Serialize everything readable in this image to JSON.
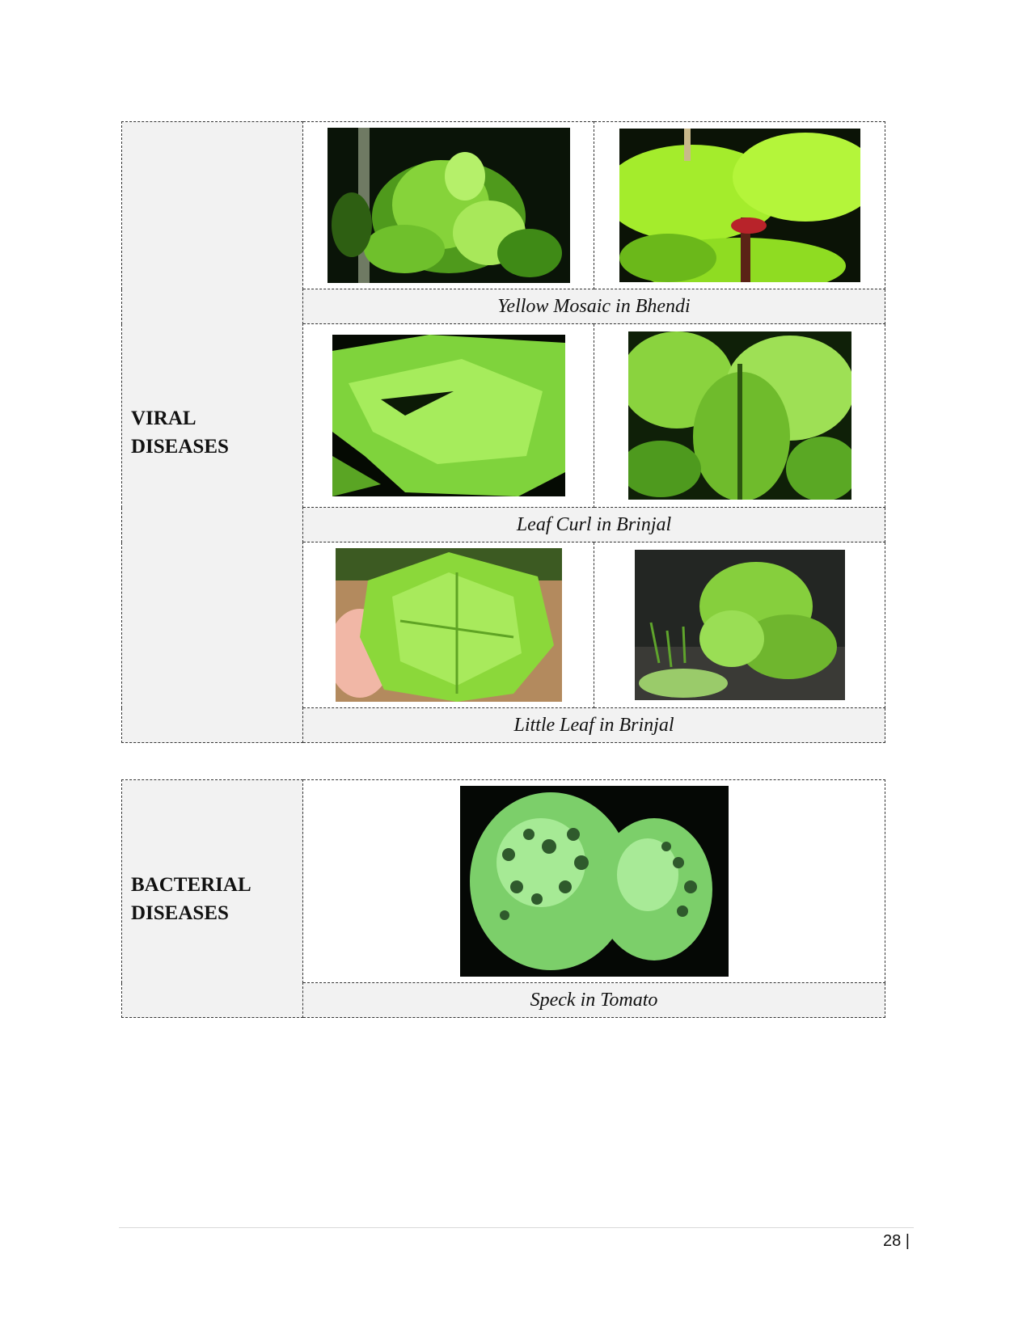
{
  "viral": {
    "category_label": "VIRAL\nDISEASES",
    "rows": [
      {
        "caption": "Yellow Mosaic in Bhendi"
      },
      {
        "caption": "Leaf Curl in Brinjal"
      },
      {
        "caption": "Little Leaf in Brinjal"
      }
    ]
  },
  "bacterial": {
    "category_label": "BACTERIAL\nDISEASES",
    "caption": "Speck in Tomato"
  },
  "footer": {
    "page_number": "28 |"
  }
}
